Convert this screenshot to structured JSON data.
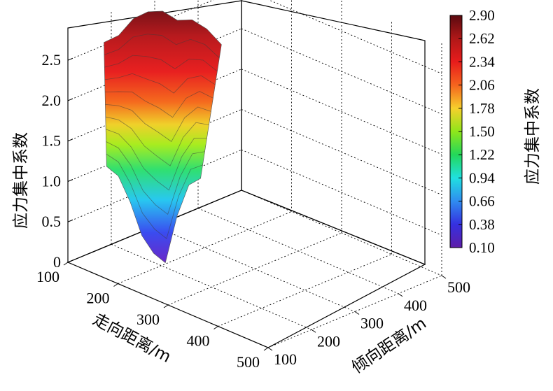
{
  "chart_data": {
    "type": "surface3d",
    "title": "",
    "zlabel": "应力集中系数",
    "xlabel": "走向距离/m",
    "ylabel": "倾向距离/m",
    "x_ticks": [
      "100",
      "200",
      "300",
      "400",
      "500"
    ],
    "y_ticks": [
      "100",
      "200",
      "300",
      "400",
      "500"
    ],
    "z_ticks": [
      "0",
      "0.5",
      "1.0",
      "1.5",
      "2.0",
      "2.5"
    ],
    "xlim": [
      100,
      500
    ],
    "ylim": [
      100,
      500
    ],
    "zlim": [
      0,
      2.9
    ],
    "colorbar": {
      "label": "应力集中系数",
      "ticks": [
        "2.90",
        "2.62",
        "2.34",
        "2.06",
        "1.78",
        "1.50",
        "1.22",
        "0.94",
        "0.66",
        "0.38",
        "0.10"
      ],
      "range": [
        0.1,
        2.9
      ],
      "colormap": [
        "#5a0a10",
        "#b01818",
        "#e81c1c",
        "#f5641e",
        "#f6d02c",
        "#8fe61a",
        "#23d85a",
        "#20e0e0",
        "#2f8cf0",
        "#3530e0",
        "#5e1ea8"
      ]
    },
    "grid": true,
    "surface_profile": {
      "x": [
        100,
        150,
        200,
        250,
        300,
        350,
        400,
        450,
        500
      ],
      "y_front": [
        100,
        100,
        100,
        100,
        100,
        100,
        100,
        100,
        100
      ],
      "z_front_edge": [
        1.3,
        1.2,
        0.9,
        0.5,
        0.3,
        0.2,
        0.8,
        1.2,
        1.3
      ],
      "z_back_peak": [
        2.6,
        2.7,
        2.8,
        2.9,
        2.8,
        2.7,
        2.6,
        2.5,
        2.2
      ]
    }
  }
}
